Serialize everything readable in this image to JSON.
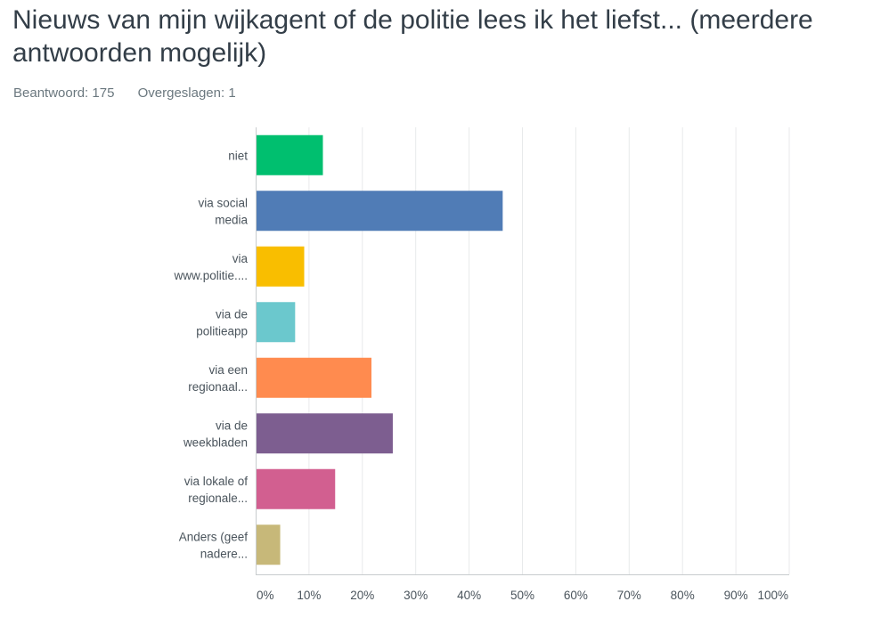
{
  "question": {
    "title": "Nieuws van mijn wijkagent of de politie lees ik het liefst... (meerdere antwoorden mogelijk)",
    "answered": "Beantwoord: 175",
    "skipped": "Overgeslagen: 1"
  },
  "chart_data": {
    "type": "bar",
    "orientation": "horizontal",
    "categories": [
      [
        "niet"
      ],
      [
        "via social",
        "media"
      ],
      [
        "via",
        "www.politie...."
      ],
      [
        "via de",
        "politieapp"
      ],
      [
        "via een",
        "regionaal..."
      ],
      [
        "via de",
        "weekbladen"
      ],
      [
        "via lokale of",
        "regionale..."
      ],
      [
        "Anders (geef",
        "nadere..."
      ]
    ],
    "values": [
      12.6,
      46.3,
      9.1,
      7.4,
      21.7,
      25.7,
      14.9,
      4.6
    ],
    "colors": [
      "#00bf6f",
      "#507cb6",
      "#f9be00",
      "#6bc8cd",
      "#ff8b4f",
      "#7d5e90",
      "#d25f90",
      "#c7b879"
    ],
    "xlim": [
      0,
      100
    ],
    "xticks": [
      "0%",
      "10%",
      "20%",
      "30%",
      "40%",
      "50%",
      "60%",
      "70%",
      "80%",
      "90%",
      "100%"
    ],
    "grid": true
  }
}
